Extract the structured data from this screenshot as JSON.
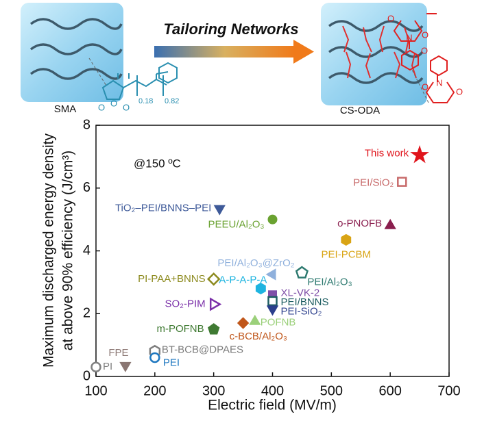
{
  "schematic": {
    "arrow_label": "Tailoring Networks",
    "left_label": "SMA",
    "right_label": "CS-ODA",
    "subscripts": [
      "0.18",
      "0.82"
    ],
    "atoms_left": [
      "O",
      "O",
      "O"
    ],
    "atoms_right": [
      "O",
      "N",
      "O",
      "O",
      "O",
      "N",
      "O"
    ]
  },
  "chart_data": {
    "type": "scatter",
    "x_label": "Electric  field (MV/m)",
    "y_label": [
      "Maximum discharged energy density",
      "at above 90% efficiency (J/cm³)"
    ],
    "annotation": "@150 ºC",
    "xlim": [
      100,
      700
    ],
    "xticks": [
      100,
      200,
      300,
      400,
      500,
      600,
      700
    ],
    "ylim": [
      0,
      8
    ],
    "yticks": [
      0,
      2,
      4,
      6,
      8
    ],
    "series": [
      {
        "name": "PI",
        "color": "#808080",
        "marker": "circle",
        "filled": false,
        "x": [
          100
        ],
        "values": [
          0.3
        ]
      },
      {
        "name": "FPE",
        "color": "#8a7672",
        "marker": "triangle-down",
        "filled": true,
        "x": [
          150
        ],
        "values": [
          0.35
        ]
      },
      {
        "name": "BT-BCB@DPAES",
        "color": "#7d7d7d",
        "marker": "hexagon",
        "filled": false,
        "x": [
          200
        ],
        "values": [
          0.8
        ]
      },
      {
        "name": "PEI",
        "color": "#1f78c0",
        "marker": "circle",
        "filled": false,
        "x": [
          200
        ],
        "values": [
          0.6
        ]
      },
      {
        "name": "TiO₂–PEI/BNNS–PEI",
        "color": "#3e5a99",
        "marker": "triangle-down",
        "filled": true,
        "x": [
          310
        ],
        "values": [
          5.35
        ]
      },
      {
        "name": "PEEU/Al₂O₃",
        "color": "#6aa231",
        "marker": "circle",
        "filled": true,
        "x": [
          400
        ],
        "values": [
          5.0
        ]
      },
      {
        "name": "PI-PAA+BNNS",
        "color": "#8c8a1e",
        "marker": "diamond",
        "filled": false,
        "x": [
          300
        ],
        "values": [
          3.1
        ]
      },
      {
        "name": "SO₂-PIM",
        "color": "#7a2fa8",
        "marker": "triangle-right",
        "filled": false,
        "x": [
          300
        ],
        "values": [
          2.3
        ]
      },
      {
        "name": "m-POFNB",
        "color": "#3f7a32",
        "marker": "pentagon",
        "filled": true,
        "x": [
          300
        ],
        "values": [
          1.5
        ]
      },
      {
        "name": "PEI/Al₂O₃@ZrO₂",
        "color": "#8fb0dc",
        "marker": "triangle-left",
        "filled": true,
        "x": [
          400
        ],
        "values": [
          3.25
        ]
      },
      {
        "name": "A-P-A-P-A",
        "color": "#1eb4e0",
        "marker": "hexagon",
        "filled": true,
        "x": [
          380
        ],
        "values": [
          2.8
        ]
      },
      {
        "name": "c-BCB/Al₂O₃",
        "color": "#c0561a",
        "marker": "diamond",
        "filled": true,
        "x": [
          350
        ],
        "values": [
          1.7
        ]
      },
      {
        "name": "POFNB",
        "color": "#9bd07a",
        "marker": "triangle-up",
        "filled": true,
        "x": [
          370
        ],
        "values": [
          1.75
        ]
      },
      {
        "name": "XL-VK-2",
        "color": "#7f4fa8",
        "marker": "square",
        "filled": true,
        "x": [
          400
        ],
        "values": [
          2.6
        ]
      },
      {
        "name": "PEI/BNNS",
        "color": "#1e5e62",
        "marker": "square",
        "filled": false,
        "x": [
          400
        ],
        "values": [
          2.4
        ]
      },
      {
        "name": "PEI-SiO₂",
        "color": "#2b3f8c",
        "marker": "triangle-down",
        "filled": true,
        "x": [
          400
        ],
        "values": [
          2.15
        ]
      },
      {
        "name": "PEI/Al₂O₃",
        "color": "#2e7a70",
        "marker": "pentagon",
        "filled": false,
        "x": [
          450
        ],
        "values": [
          3.3
        ]
      },
      {
        "name": "PEI-PCBM",
        "color": "#d9a414",
        "marker": "hexagon",
        "filled": true,
        "x": [
          525
        ],
        "values": [
          4.35
        ]
      },
      {
        "name": "o-PNOFB",
        "color": "#8a1e4e",
        "marker": "triangle-up",
        "filled": true,
        "x": [
          600
        ],
        "values": [
          4.8
        ]
      },
      {
        "name": "PEI/SiO₂",
        "color": "#c86a6a",
        "marker": "square",
        "filled": false,
        "x": [
          620
        ],
        "values": [
          6.2
        ]
      },
      {
        "name": "This work",
        "color": "#e0141c",
        "marker": "star",
        "filled": true,
        "x": [
          650
        ],
        "values": [
          7.05
        ]
      }
    ]
  }
}
